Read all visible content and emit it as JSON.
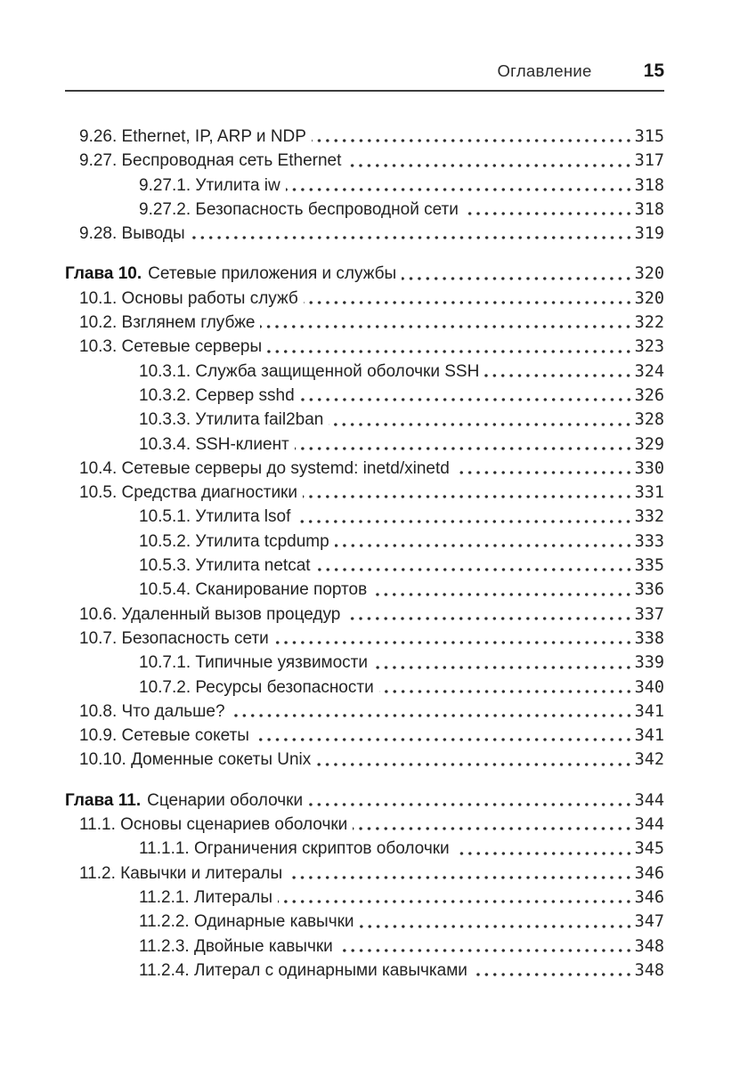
{
  "header": {
    "title": "Оглавление",
    "page_number": "15"
  },
  "toc": {
    "entries": [
      {
        "level": 1,
        "prefix": "",
        "label": "9.26. Ethernet, IP, ARP и NDP",
        "page": "315"
      },
      {
        "level": 1,
        "prefix": "",
        "label": "9.27. Беспроводная сеть Ethernet",
        "page": "317"
      },
      {
        "level": 2,
        "prefix": "",
        "label": "9.27.1. Утилита iw",
        "page": "318"
      },
      {
        "level": 2,
        "prefix": "",
        "label": "9.27.2. Безопасность беспроводной сети",
        "page": "318"
      },
      {
        "level": 1,
        "prefix": "",
        "label": "9.28. Выводы",
        "page": "319"
      },
      {
        "level": 0,
        "prefix": "Глава 10.",
        "label": "Сетевые приложения и службы",
        "page": "320"
      },
      {
        "level": 1,
        "prefix": "",
        "label": "10.1. Основы работы служб",
        "page": "320"
      },
      {
        "level": 1,
        "prefix": "",
        "label": "10.2. Взглянем глубже",
        "page": "322"
      },
      {
        "level": 1,
        "prefix": "",
        "label": "10.3. Сетевые серверы",
        "page": "323"
      },
      {
        "level": 2,
        "prefix": "",
        "label": "10.3.1. Служба защищенной оболочки SSH",
        "page": "324"
      },
      {
        "level": 2,
        "prefix": "",
        "label": "10.3.2. Сервер sshd",
        "page": "326"
      },
      {
        "level": 2,
        "prefix": "",
        "label": "10.3.3. Утилита fail2ban",
        "page": "328"
      },
      {
        "level": 2,
        "prefix": "",
        "label": "10.3.4. SSH-клиент",
        "page": "329"
      },
      {
        "level": 1,
        "prefix": "",
        "label": "10.4. Сетевые серверы до systemd: inetd/xinetd",
        "page": "330"
      },
      {
        "level": 1,
        "prefix": "",
        "label": "10.5. Средства диагностики",
        "page": "331"
      },
      {
        "level": 2,
        "prefix": "",
        "label": "10.5.1. Утилита lsof",
        "page": "332"
      },
      {
        "level": 2,
        "prefix": "",
        "label": "10.5.2. Утилита tcpdump",
        "page": "333"
      },
      {
        "level": 2,
        "prefix": "",
        "label": "10.5.3. Утилита netcat",
        "page": "335"
      },
      {
        "level": 2,
        "prefix": "",
        "label": "10.5.4. Сканирование портов",
        "page": "336"
      },
      {
        "level": 1,
        "prefix": "",
        "label": "10.6. Удаленный вызов процедур",
        "page": "337"
      },
      {
        "level": 1,
        "prefix": "",
        "label": "10.7. Безопасность сети",
        "page": "338"
      },
      {
        "level": 2,
        "prefix": "",
        "label": "10.7.1. Типичные уязвимости",
        "page": "339"
      },
      {
        "level": 2,
        "prefix": "",
        "label": "10.7.2. Ресурсы безопасности",
        "page": "340"
      },
      {
        "level": 1,
        "prefix": "",
        "label": "10.8. Что дальше?",
        "page": "341"
      },
      {
        "level": 1,
        "prefix": "",
        "label": "10.9. Сетевые сокеты",
        "page": "341"
      },
      {
        "level": 1,
        "prefix": "",
        "label": "10.10. Доменные сокеты Unix",
        "page": "342"
      },
      {
        "level": 0,
        "prefix": "Глава 11.",
        "label": "Сценарии оболочки",
        "page": "344"
      },
      {
        "level": 1,
        "prefix": "",
        "label": "11.1. Основы сценариев оболочки",
        "page": "344"
      },
      {
        "level": 2,
        "prefix": "",
        "label": "11.1.1. Ограничения скриптов оболочки",
        "page": "345"
      },
      {
        "level": 1,
        "prefix": "",
        "label": "11.2. Кавычки и литералы",
        "page": "346"
      },
      {
        "level": 2,
        "prefix": "",
        "label": "11.2.1. Литералы",
        "page": "346"
      },
      {
        "level": 2,
        "prefix": "",
        "label": "11.2.2. Одинарные кавычки",
        "page": "347"
      },
      {
        "level": 2,
        "prefix": "",
        "label": "11.2.3. Двойные кавычки",
        "page": "348"
      },
      {
        "level": 2,
        "prefix": "",
        "label": "11.2.4. Литерал с одинарными кавычками",
        "page": "348"
      }
    ]
  }
}
